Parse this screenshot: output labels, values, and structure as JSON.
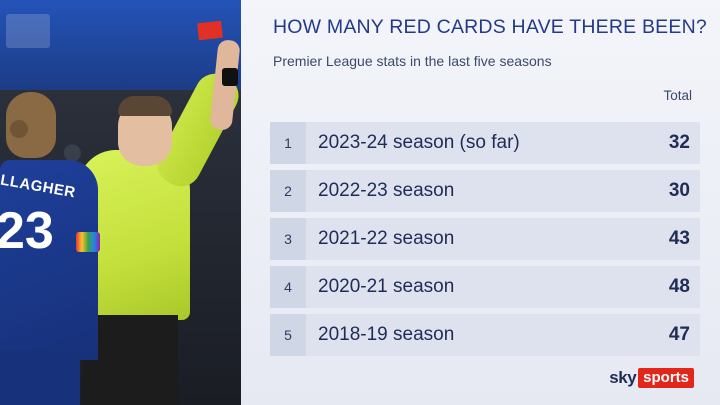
{
  "header": {
    "title": "HOW MANY RED CARDS HAVE THERE BEEN?",
    "subtitle": "Premier League stats in the last five seasons",
    "column_label": "Total"
  },
  "rows": [
    {
      "rank": "1",
      "season": "2023-24 season (so far)",
      "total": "32"
    },
    {
      "rank": "2",
      "season": "2022-23 season",
      "total": "30"
    },
    {
      "rank": "3",
      "season": "2021-22 season",
      "total": "43"
    },
    {
      "rank": "4",
      "season": "2020-21 season",
      "total": "48"
    },
    {
      "rank": "5",
      "season": "2018-19 season",
      "total": "47"
    }
  ],
  "photo": {
    "player_name": "LLAGHER",
    "player_number": "23"
  },
  "branding": {
    "sky": "sky",
    "sports": "sports"
  },
  "colors": {
    "title": "#243a86",
    "brand_red": "#e2261c",
    "red_card": "#e23124",
    "referee_shirt": "#d9f25a",
    "player_shirt": "#1e3f9a"
  }
}
